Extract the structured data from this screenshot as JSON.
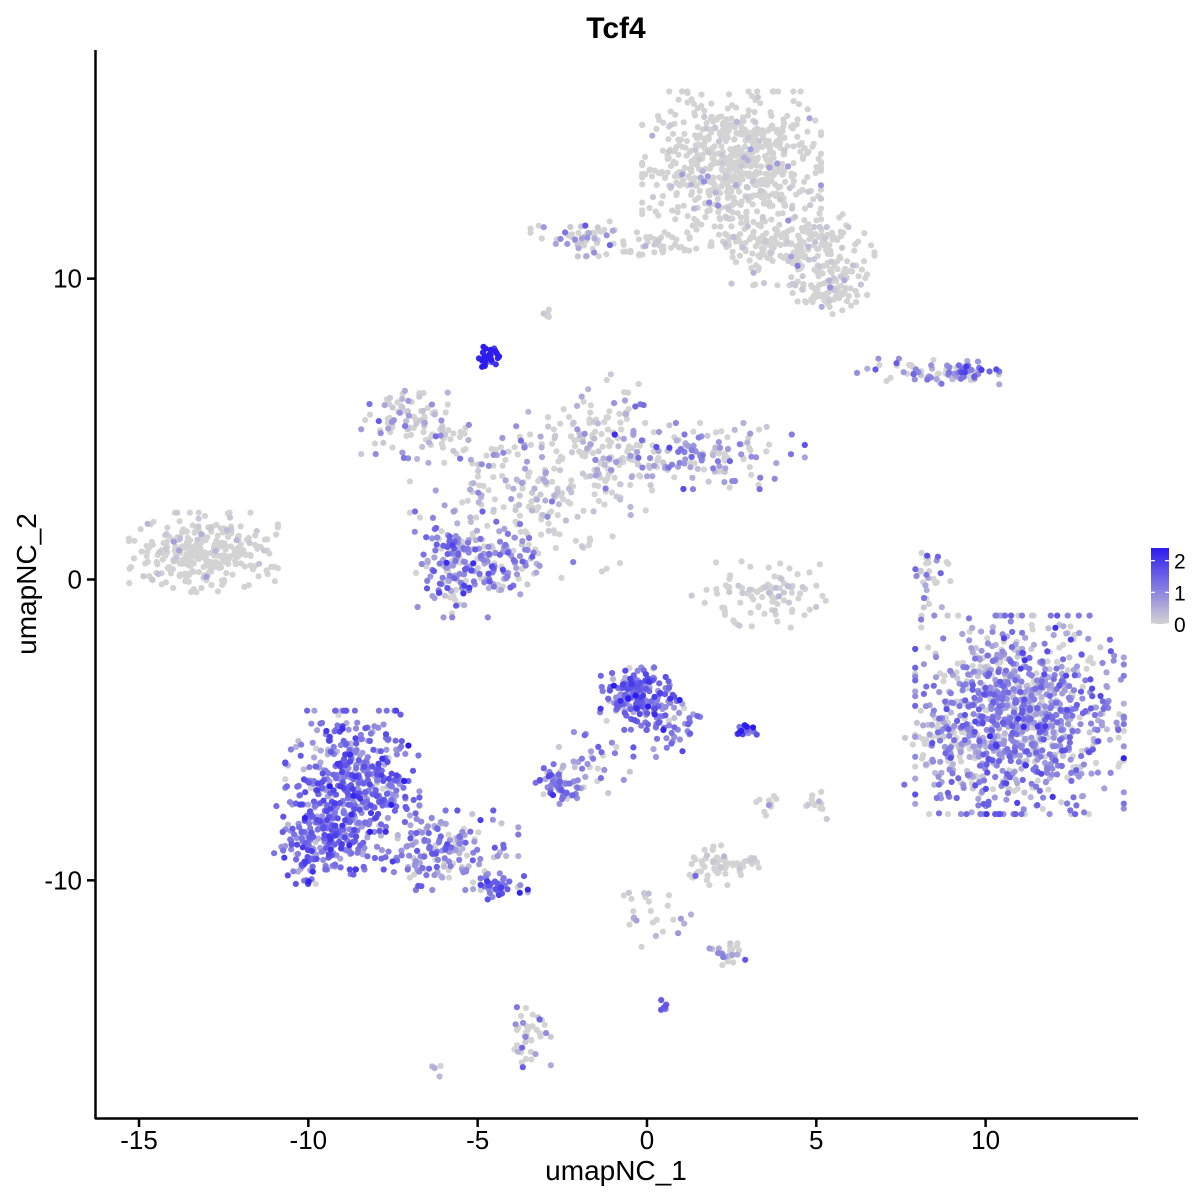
{
  "chart_data": {
    "type": "scatter",
    "title": "Tcf4",
    "xlabel": "umapNC_1",
    "ylabel": "umapNC_2",
    "xlim": [
      -16.3,
      14.5
    ],
    "ylim": [
      -17.9,
      17.6
    ],
    "x_ticks": [
      -15,
      -10,
      -5,
      0,
      5,
      10
    ],
    "x_tick_labels": [
      "-15",
      "-10",
      "-5",
      "0",
      "5",
      "10"
    ],
    "y_ticks": [
      -10,
      0,
      10
    ],
    "y_tick_labels": [
      "-10",
      "0",
      "10"
    ],
    "grid": false,
    "legend_position": "right",
    "color_scale": {
      "low_color": "#d3d3d3",
      "high_color": "#2c1cf0",
      "min": 0,
      "max": 2.4,
      "breaks": [
        0,
        1,
        2
      ],
      "break_labels": [
        "0",
        "1",
        "2"
      ]
    },
    "point_clusters": [
      {
        "cx": 2.5,
        "cy": 13.8,
        "sx": 1.2,
        "sy": 1.1,
        "n": 650,
        "expr": 0.06
      },
      {
        "cx": 4.3,
        "cy": 11.1,
        "sx": 1.1,
        "sy": 0.6,
        "n": 220,
        "expr": 0.08
      },
      {
        "cx": 5.4,
        "cy": 9.7,
        "sx": 0.5,
        "sy": 0.4,
        "n": 90,
        "expr": 0.05
      },
      {
        "cx": -1.9,
        "cy": 11.4,
        "sx": 0.7,
        "sy": 0.3,
        "n": 55,
        "expr": 0.5
      },
      {
        "cx": 0.5,
        "cy": 11.2,
        "sx": 0.9,
        "sy": 0.2,
        "n": 45,
        "expr": 0.15
      },
      {
        "cx": -3.0,
        "cy": 8.8,
        "sx": 0.1,
        "sy": 0.1,
        "n": 6,
        "expr": 0.6
      },
      {
        "cx": -4.7,
        "cy": 7.4,
        "sx": 0.15,
        "sy": 0.15,
        "n": 25,
        "expr": 2.2
      },
      {
        "cx": 8.2,
        "cy": 6.9,
        "sx": 1.0,
        "sy": 0.2,
        "n": 60,
        "expr": 0.7
      },
      {
        "cx": 9.5,
        "cy": 6.9,
        "sx": 0.3,
        "sy": 0.2,
        "n": 30,
        "expr": 1.3
      },
      {
        "cx": -6.9,
        "cy": 5.2,
        "sx": 0.7,
        "sy": 0.6,
        "n": 100,
        "expr": 0.55
      },
      {
        "cx": -1.6,
        "cy": 3.9,
        "sx": 1.3,
        "sy": 0.8,
        "n": 160,
        "expr": 0.45
      },
      {
        "cx": 1.8,
        "cy": 4.1,
        "sx": 1.3,
        "sy": 0.5,
        "n": 130,
        "expr": 0.8
      },
      {
        "cx": -1.2,
        "cy": 5.5,
        "sx": 0.5,
        "sy": 0.6,
        "n": 40,
        "expr": 0.5
      },
      {
        "cx": -4.8,
        "cy": 3.6,
        "sx": 1.0,
        "sy": 0.7,
        "n": 60,
        "expr": 0.6
      },
      {
        "cx": -3.0,
        "cy": 2.0,
        "sx": 1.0,
        "sy": 0.9,
        "n": 80,
        "expr": 0.3
      },
      {
        "cx": -5.8,
        "cy": 0.5,
        "sx": 0.5,
        "sy": 0.8,
        "n": 130,
        "expr": 1.0
      },
      {
        "cx": -4.3,
        "cy": 0.6,
        "sx": 0.6,
        "sy": 0.6,
        "n": 110,
        "expr": 0.9
      },
      {
        "cx": -13.1,
        "cy": 0.9,
        "sx": 1.0,
        "sy": 0.6,
        "n": 300,
        "expr": 0.08
      },
      {
        "cx": 3.3,
        "cy": -0.5,
        "sx": 0.9,
        "sy": 0.5,
        "n": 90,
        "expr": 0.15
      },
      {
        "cx": 8.3,
        "cy": 0.2,
        "sx": 0.3,
        "sy": 0.6,
        "n": 30,
        "expr": 0.8
      },
      {
        "cx": 11.0,
        "cy": -4.5,
        "sx": 1.4,
        "sy": 1.5,
        "n": 1000,
        "expr": 0.95
      },
      {
        "cx": 8.7,
        "cy": -5.5,
        "sx": 0.5,
        "sy": 0.6,
        "n": 60,
        "expr": 0.7
      },
      {
        "cx": -0.3,
        "cy": -3.9,
        "sx": 0.5,
        "sy": 0.5,
        "n": 180,
        "expr": 1.4
      },
      {
        "cx": 0.8,
        "cy": -4.8,
        "sx": 0.4,
        "sy": 0.5,
        "n": 40,
        "expr": 1.2
      },
      {
        "cx": -1.5,
        "cy": -6.0,
        "sx": 0.5,
        "sy": 0.5,
        "n": 30,
        "expr": 1.0
      },
      {
        "cx": -2.5,
        "cy": -6.8,
        "sx": 0.4,
        "sy": 0.3,
        "n": 60,
        "expr": 1.1
      },
      {
        "cx": 2.8,
        "cy": -5.0,
        "sx": 0.2,
        "sy": 0.1,
        "n": 15,
        "expr": 1.8
      },
      {
        "cx": -8.7,
        "cy": -7.0,
        "sx": 0.9,
        "sy": 1.2,
        "n": 500,
        "expr": 1.25
      },
      {
        "cx": -9.7,
        "cy": -8.8,
        "sx": 0.6,
        "sy": 0.6,
        "n": 140,
        "expr": 1.2
      },
      {
        "cx": -6.0,
        "cy": -9.0,
        "sx": 1.0,
        "sy": 0.6,
        "n": 160,
        "expr": 1.0
      },
      {
        "cx": -4.4,
        "cy": -10.2,
        "sx": 0.4,
        "sy": 0.2,
        "n": 40,
        "expr": 1.4
      },
      {
        "cx": 2.2,
        "cy": -9.5,
        "sx": 0.5,
        "sy": 0.3,
        "n": 60,
        "expr": 0.15
      },
      {
        "cx": 3.5,
        "cy": -7.4,
        "sx": 0.2,
        "sy": 0.3,
        "n": 10,
        "expr": 0.1
      },
      {
        "cx": 5.0,
        "cy": -7.3,
        "sx": 0.2,
        "sy": 0.3,
        "n": 12,
        "expr": 0.15
      },
      {
        "cx": 0.2,
        "cy": -11.0,
        "sx": 0.5,
        "sy": 0.6,
        "n": 25,
        "expr": 0.6
      },
      {
        "cx": 2.3,
        "cy": -12.4,
        "sx": 0.4,
        "sy": 0.2,
        "n": 25,
        "expr": 0.6
      },
      {
        "cx": 0.6,
        "cy": -14.2,
        "sx": 0.1,
        "sy": 0.1,
        "n": 6,
        "expr": 1.6
      },
      {
        "cx": -3.5,
        "cy": -14.9,
        "sx": 0.3,
        "sy": 0.6,
        "n": 40,
        "expr": 0.6
      },
      {
        "cx": -6.2,
        "cy": -16.3,
        "sx": 0.1,
        "sy": 0.1,
        "n": 4,
        "expr": 0.5
      }
    ]
  }
}
